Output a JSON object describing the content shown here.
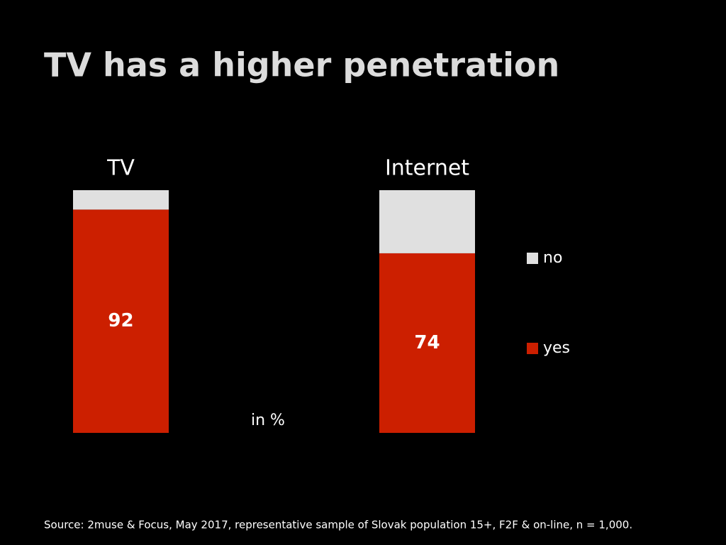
{
  "chart_data": {
    "type": "stacked_bar",
    "title": "TV has a higher penetration",
    "annotation": "in %",
    "source": "Source: 2muse & Focus, May 2017, representative sample of Slovak population 15+, F2F & on-line, n = 1,000.",
    "categories": [
      "TV",
      "Internet"
    ],
    "series": [
      {
        "name": "yes",
        "color": "#cc1f00",
        "values": [
          92,
          74
        ],
        "show_labels": true
      },
      {
        "name": "no",
        "color": "#e0e0e0",
        "values": [
          8,
          26
        ],
        "show_labels": false
      }
    ]
  }
}
